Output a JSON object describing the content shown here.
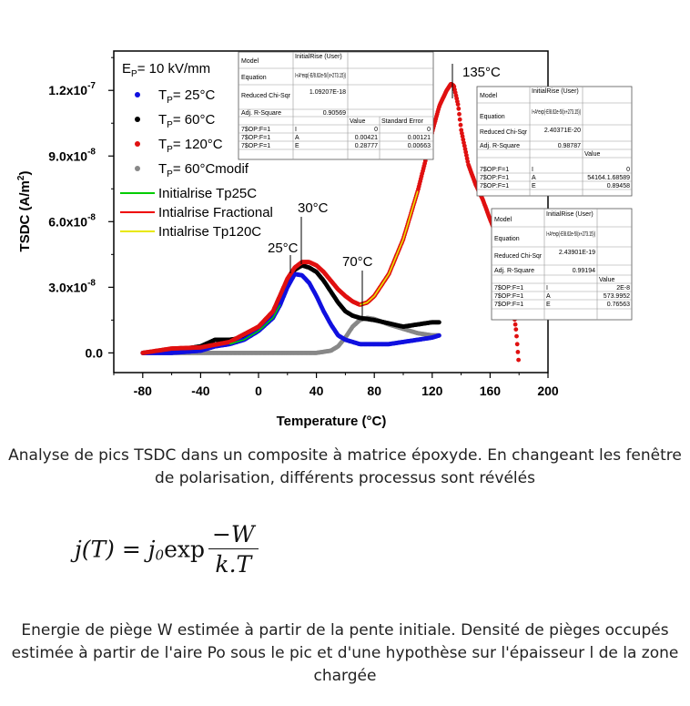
{
  "chart_data": {
    "type": "scatter",
    "xlabel": "Temperature (°C)",
    "ylabel": "TSDC (A/m2)",
    "xlim": [
      -100,
      200
    ],
    "ylim": [
      -9e-09,
      1.38e-07
    ],
    "xticks": [
      -80,
      -40,
      0,
      40,
      80,
      120,
      160,
      200
    ],
    "xtick_labels": [
      "-80",
      "-40",
      "0",
      "40",
      "80",
      "120",
      "160",
      "200"
    ],
    "yticks": [
      0,
      3e-08,
      6e-08,
      9e-08,
      1.2e-07
    ],
    "ytick_labels": [
      "0.0",
      "3.0x10-8",
      "6.0x10-8",
      "9.0x10-8",
      "1.2x10-7"
    ],
    "legend_title": "EP= 10 kV/mm",
    "series": [
      {
        "name": "TP= 25°C",
        "color": "#1010e0",
        "marker": "circle",
        "x": [
          -80,
          -60,
          -40,
          -30,
          -20,
          -10,
          0,
          10,
          15,
          20,
          25,
          30,
          35,
          40,
          45,
          50,
          55,
          60,
          65,
          70,
          75,
          80,
          90,
          100,
          110,
          120,
          125
        ],
        "y": [
          0,
          0,
          1e-09,
          3e-09,
          4e-09,
          6e-09,
          1e-08,
          1.6e-08,
          2.2e-08,
          3e-08,
          3.6e-08,
          3.55e-08,
          3.2e-08,
          2.6e-08,
          1.9e-08,
          1.3e-08,
          8e-09,
          6e-09,
          5e-09,
          4e-09,
          4e-09,
          4e-09,
          4e-09,
          5e-09,
          6e-09,
          7e-09,
          8e-09
        ]
      },
      {
        "name": "TP= 60°C",
        "color": "#000000",
        "marker": "circle",
        "x": [
          -80,
          -60,
          -40,
          -30,
          -20,
          -10,
          0,
          10,
          20,
          25,
          30,
          35,
          40,
          45,
          50,
          55,
          60,
          65,
          70,
          75,
          80,
          90,
          100,
          110,
          120,
          125
        ],
        "y": [
          0,
          1e-09,
          3e-09,
          6e-09,
          6e-09,
          7e-09,
          1.1e-08,
          1.8e-08,
          3.3e-08,
          3.8e-08,
          4e-08,
          3.9e-08,
          3.7e-08,
          3.3e-08,
          2.8e-08,
          2.3e-08,
          1.9e-08,
          1.7e-08,
          1.6e-08,
          1.55e-08,
          1.5e-08,
          1.35e-08,
          1.2e-08,
          1.3e-08,
          1.4e-08,
          1.4e-08
        ]
      },
      {
        "name": "TP= 120°C",
        "color": "#e01010",
        "marker": "circle",
        "x": [
          -80,
          -60,
          -40,
          -20,
          0,
          10,
          20,
          25,
          30,
          35,
          40,
          45,
          50,
          55,
          60,
          65,
          70,
          75,
          80,
          90,
          100,
          110,
          115,
          120,
          125,
          130,
          133,
          135,
          138,
          140,
          145,
          150,
          155,
          160,
          165,
          170,
          175,
          178,
          180
        ],
        "y": [
          0,
          2e-09,
          2.5e-09,
          5e-09,
          1.2e-08,
          1.9e-08,
          3.4e-08,
          3.9e-08,
          4.15e-08,
          4.15e-08,
          4e-08,
          3.7e-08,
          3.3e-08,
          2.9e-08,
          2.6e-08,
          2.35e-08,
          2.2e-08,
          2.3e-08,
          2.6e-08,
          3.6e-08,
          5.2e-08,
          7.4e-08,
          8.7e-08,
          1.01e-07,
          1.13e-07,
          1.2e-07,
          1.23e-07,
          1.22e-07,
          1.13e-07,
          1.02e-07,
          8.6e-08,
          7.7e-08,
          7e-08,
          6.1e-08,
          5.3e-08,
          4.4e-08,
          2.5e-08,
          1e-08,
          -6e-09
        ]
      },
      {
        "name": "TP= 60°Cmodif",
        "color": "#888888",
        "marker": "circle",
        "x": [
          -80,
          -40,
          0,
          20,
          40,
          50,
          55,
          60,
          65,
          70,
          75,
          80,
          90,
          100,
          110,
          120,
          125
        ],
        "y": [
          0,
          0,
          0,
          0,
          0,
          1e-09,
          3e-09,
          7e-09,
          1.2e-08,
          1.5e-08,
          1.6e-08,
          1.55e-08,
          1.3e-08,
          1.1e-08,
          9e-09,
          8e-09,
          8e-09
        ]
      }
    ],
    "fits": [
      {
        "name": "Initialrise Tp25C",
        "color": "#00cc00"
      },
      {
        "name": "Intialrise Fractional",
        "color": "#ee0000"
      },
      {
        "name": "Intialrise Tp120C",
        "color": "#e8e800"
      }
    ],
    "annotations": [
      {
        "text": "25°C",
        "x": 25
      },
      {
        "text": "30°C",
        "x": 30
      },
      {
        "text": "70°C",
        "x": 70
      },
      {
        "text": "135°C",
        "x": 133
      }
    ],
    "fit_tables": [
      {
        "model_label": "Model",
        "model_value": "InitialRise (User)",
        "equation_label": "Equation",
        "equation_value": "I+A*exp(-E/8.62e-5/(x+273.15))",
        "chisq_label": "Reduced Chi-Sqr",
        "chisq_value": "1.09207E-18",
        "r2_label": "Adj. R-Square",
        "r2_value": "0.90569",
        "col_value": "Value",
        "col_error": "Standard Error",
        "rows": [
          {
            "src": "7$OP:F=1",
            "param": "I",
            "value": "0",
            "error": "0"
          },
          {
            "src": "7$OP:F=1",
            "param": "A",
            "value": "0.00421",
            "error": "0.00121"
          },
          {
            "src": "7$OP:F=1",
            "param": "E",
            "value": "0.28777",
            "error": "0.00663"
          }
        ]
      },
      {
        "model_label": "Model",
        "model_value": "InitialRise (User)",
        "equation_label": "Equation",
        "equation_value": "I+A*exp(-E/8.62e-5/(x+273.15))",
        "chisq_label": "Reduced Chi-Sqr",
        "chisq_value": "2.40371E-20",
        "r2_label": "Adj. R-Square",
        "r2_value": "0.98787",
        "col_value": "Value",
        "rows": [
          {
            "src": "7$OP:F=1",
            "param": "I",
            "value": "0"
          },
          {
            "src": "7$OP:F=1",
            "param": "A",
            "value": "54164.1.68589"
          },
          {
            "src": "7$OP:F=1",
            "param": "E",
            "value": "0.89458"
          }
        ]
      },
      {
        "model_label": "Model",
        "model_value": "InitialRise (User)",
        "equation_label": "Equation",
        "equation_value": "I+A*exp(-E/8.62e-5/(x+273.15))",
        "chisq_label": "Reduced Chi-Sqr",
        "chisq_value": "2.43901E-19",
        "r2_label": "Adj. R-Square",
        "r2_value": "0.99194",
        "col_value": "Value",
        "rows": [
          {
            "src": "7$OP:F=1",
            "param": "I",
            "value": "2E-8"
          },
          {
            "src": "7$OP:F=1",
            "param": "A",
            "value": "573.9952"
          },
          {
            "src": "7$OP:F=1",
            "param": "E",
            "value": "0.76563"
          }
        ]
      }
    ]
  },
  "captions": {
    "analysis": "Analyse de pics TSDC dans un composite à matrice époxyde. En changeant les fenêtre de polarisation, différents processus sont révélés",
    "energy": "Energie de piège W estimée à partir de la pente initiale. Densité de pièges occupés estimée à partir de l'aire Po sous le pic et d'une hypothèse sur l'épaisseur l de la zone chargée"
  },
  "formula": {
    "lhs": "j(T) = j",
    "sub": "0",
    "exp": "exp",
    "numerator": "−W",
    "denominator": "k.T"
  }
}
